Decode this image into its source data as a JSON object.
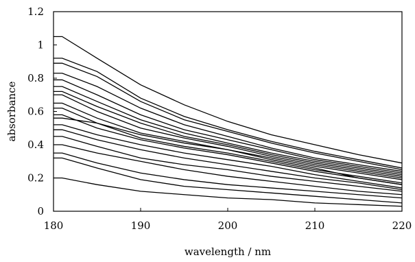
{
  "chart_data": {
    "type": "line",
    "title": "",
    "xlabel": "wavelength / nm",
    "ylabel": "absorbance",
    "xlim": [
      180,
      220
    ],
    "ylim": [
      0,
      1.2
    ],
    "xticks": [
      180,
      190,
      200,
      210,
      220
    ],
    "yticks": [
      0,
      0.2,
      0.4,
      0.6,
      0.8,
      1,
      1.2
    ],
    "xtick_labels": [
      "180",
      "190",
      "200",
      "210",
      "220"
    ],
    "ytick_labels": [
      "0",
      "0.2",
      "0.4",
      "0.6",
      "0.8",
      "1",
      "1.2"
    ],
    "grid": false,
    "legend": "none",
    "x": [
      180,
      181,
      185,
      190,
      195,
      200,
      205,
      210,
      215,
      220
    ],
    "series": [
      {
        "values": [
          1.05,
          1.05,
          0.92,
          0.76,
          0.64,
          0.54,
          0.46,
          0.4,
          0.34,
          0.29
        ]
      },
      {
        "values": [
          0.92,
          0.92,
          0.84,
          0.68,
          0.57,
          0.49,
          0.42,
          0.36,
          0.31,
          0.26
        ]
      },
      {
        "values": [
          0.89,
          0.89,
          0.81,
          0.66,
          0.55,
          0.48,
          0.41,
          0.35,
          0.3,
          0.25
        ]
      },
      {
        "values": [
          0.83,
          0.83,
          0.75,
          0.62,
          0.52,
          0.45,
          0.38,
          0.32,
          0.28,
          0.24
        ]
      },
      {
        "values": [
          0.79,
          0.79,
          0.7,
          0.58,
          0.49,
          0.43,
          0.37,
          0.31,
          0.27,
          0.23
        ]
      },
      {
        "values": [
          0.75,
          0.75,
          0.66,
          0.55,
          0.47,
          0.41,
          0.35,
          0.3,
          0.26,
          0.22
        ]
      },
      {
        "values": [
          0.72,
          0.72,
          0.63,
          0.53,
          0.45,
          0.4,
          0.34,
          0.29,
          0.25,
          0.21
        ]
      },
      {
        "values": [
          0.7,
          0.7,
          0.6,
          0.5,
          0.44,
          0.39,
          0.33,
          0.28,
          0.24,
          0.2
        ]
      },
      {
        "values": [
          0.65,
          0.65,
          0.56,
          0.47,
          0.42,
          0.37,
          0.32,
          0.27,
          0.23,
          0.19
        ]
      },
      {
        "values": [
          0.62,
          0.62,
          0.53,
          0.44,
          0.39,
          0.35,
          0.3,
          0.25,
          0.21,
          0.17
        ]
      },
      {
        "values": [
          0.58,
          0.58,
          0.5,
          0.43,
          0.38,
          0.34,
          0.29,
          0.24,
          0.2,
          0.16
        ]
      },
      {
        "values": [
          0.56,
          0.56,
          0.53,
          0.46,
          0.41,
          0.37,
          0.31,
          0.26,
          0.2,
          0.16
        ]
      },
      {
        "values": [
          0.52,
          0.52,
          0.46,
          0.4,
          0.35,
          0.31,
          0.27,
          0.22,
          0.18,
          0.14
        ]
      },
      {
        "values": [
          0.49,
          0.49,
          0.43,
          0.37,
          0.32,
          0.28,
          0.24,
          0.2,
          0.17,
          0.13
        ]
      },
      {
        "values": [
          0.45,
          0.45,
          0.39,
          0.32,
          0.28,
          0.25,
          0.21,
          0.18,
          0.15,
          0.12
        ]
      },
      {
        "values": [
          0.4,
          0.4,
          0.35,
          0.3,
          0.25,
          0.21,
          0.18,
          0.15,
          0.12,
          0.1
        ]
      },
      {
        "values": [
          0.35,
          0.35,
          0.29,
          0.23,
          0.19,
          0.16,
          0.14,
          0.12,
          0.1,
          0.08
        ]
      },
      {
        "values": [
          0.32,
          0.32,
          0.26,
          0.19,
          0.15,
          0.13,
          0.11,
          0.09,
          0.07,
          0.05
        ]
      },
      {
        "values": [
          0.2,
          0.2,
          0.16,
          0.12,
          0.1,
          0.08,
          0.07,
          0.05,
          0.04,
          0.03
        ]
      }
    ]
  }
}
